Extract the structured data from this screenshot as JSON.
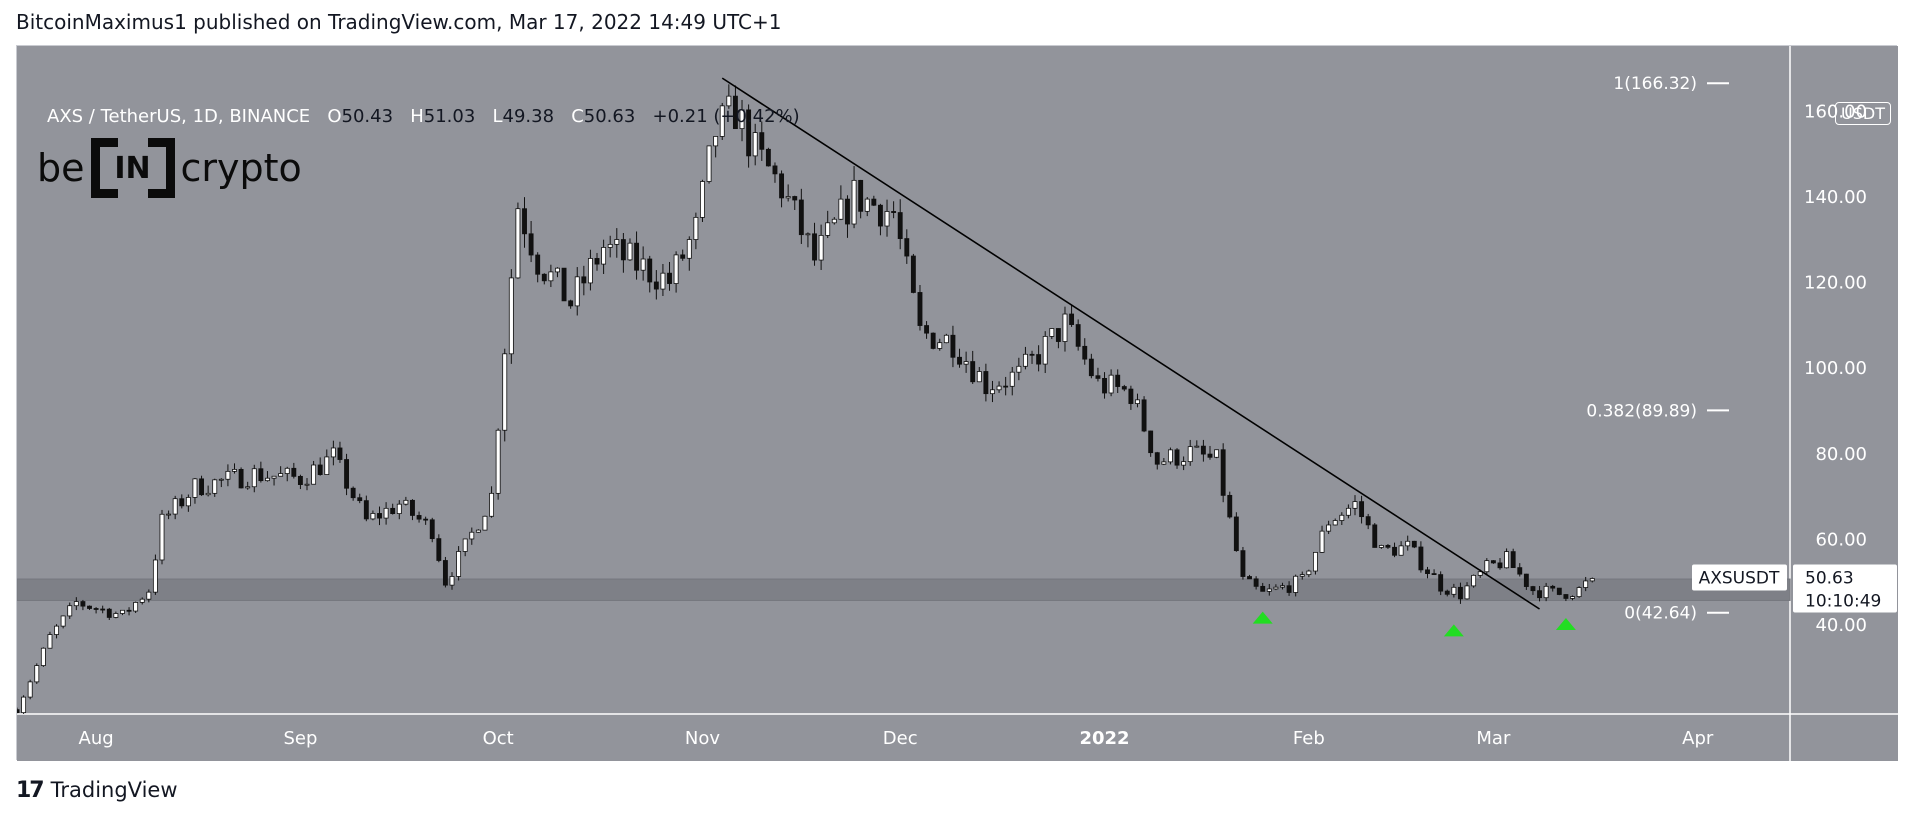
{
  "header": {
    "publisher_text": "BitcoinMaximus1 published on TradingView.com, Mar 17, 2022 14:49 UTC+1"
  },
  "symbol": {
    "title": "AXS / TetherUS, 1D, BINANCE",
    "o_label": "O",
    "o_value": "50.43",
    "h_label": "H",
    "h_value": "51.03",
    "l_label": "L",
    "l_value": "49.38",
    "c_label": "C",
    "c_value": "50.63",
    "change": "+0.21 (+0.42%)"
  },
  "brand": {
    "left": "be",
    "box": "IN",
    "right": "crypto"
  },
  "axis": {
    "currency": "USDT",
    "last_symbol": "AXSUSDT",
    "last_price": "50.63",
    "countdown": "10:10:49"
  },
  "footer": {
    "logo_mark": "17",
    "logo_word": "TradingView"
  },
  "colors": {
    "plot_bg": "#92949b",
    "zone": "#7e8087",
    "candle_up": "#ffffff",
    "candle_down": "#111111",
    "trendline": "#000000",
    "marker": "#22dd22"
  },
  "chart_data": {
    "type": "candlestick",
    "title": "AXS / TetherUS, 1D, BINANCE",
    "ylim": [
      40,
      168
    ],
    "y_ticks": [
      40,
      60,
      80,
      100,
      120,
      140,
      160
    ],
    "y_tick_labels": [
      "40.00",
      "60.00",
      "80.00",
      "100.00",
      "120.00",
      "140.00",
      "160.00"
    ],
    "x_ticks": [
      {
        "label": "Aug",
        "date": "2021-08-01"
      },
      {
        "label": "Sep",
        "date": "2021-09-01"
      },
      {
        "label": "Oct",
        "date": "2021-10-01"
      },
      {
        "label": "Nov",
        "date": "2021-11-01"
      },
      {
        "label": "Dec",
        "date": "2021-12-01"
      },
      {
        "label": "2022",
        "date": "2022-01-01",
        "bold": true
      },
      {
        "label": "Feb",
        "date": "2022-02-01"
      },
      {
        "label": "Mar",
        "date": "2022-03-01"
      },
      {
        "label": "Apr",
        "date": "2022-04-01"
      }
    ],
    "x_range": [
      "2021-07-20",
      "2022-04-15"
    ],
    "support_zone": [
      45.5,
      50.5
    ],
    "trendline": [
      {
        "date": "2021-11-04",
        "price": 167.5
      },
      {
        "date": "2022-03-08",
        "price": 43.5
      }
    ],
    "fib_levels": [
      {
        "label": "1(166.32)",
        "price": 166.32
      },
      {
        "label": "0.382(89.89)",
        "price": 89.89
      },
      {
        "label": "0(42.64)",
        "price": 42.64
      }
    ],
    "markers": [
      {
        "date": "2022-01-25",
        "price": 41.5
      },
      {
        "date": "2022-02-23",
        "price": 38.5
      },
      {
        "date": "2022-03-12",
        "price": 40.0
      }
    ],
    "close_anchors": [
      [
        "2021-07-20",
        20
      ],
      [
        "2021-07-25",
        37
      ],
      [
        "2021-07-29",
        45
      ],
      [
        "2021-08-05",
        42
      ],
      [
        "2021-08-09",
        48
      ],
      [
        "2021-08-11",
        64
      ],
      [
        "2021-08-16",
        72
      ],
      [
        "2021-08-25",
        75
      ],
      [
        "2021-09-01",
        74
      ],
      [
        "2021-09-06",
        79
      ],
      [
        "2021-09-11",
        64
      ],
      [
        "2021-09-16",
        68
      ],
      [
        "2021-09-21",
        62
      ],
      [
        "2021-09-23",
        50
      ],
      [
        "2021-09-26",
        58
      ],
      [
        "2021-09-30",
        70
      ],
      [
        "2021-10-02",
        105
      ],
      [
        "2021-10-04",
        138
      ],
      [
        "2021-10-07",
        125
      ],
      [
        "2021-10-12",
        115
      ],
      [
        "2021-10-17",
        128
      ],
      [
        "2021-10-22",
        124
      ],
      [
        "2021-10-27",
        120
      ],
      [
        "2021-10-31",
        132
      ],
      [
        "2021-11-03",
        155
      ],
      [
        "2021-11-06",
        160
      ],
      [
        "2021-11-09",
        150
      ],
      [
        "2021-11-13",
        142
      ],
      [
        "2021-11-18",
        125
      ],
      [
        "2021-11-24",
        140
      ],
      [
        "2021-11-30",
        136
      ],
      [
        "2021-12-04",
        108
      ],
      [
        "2021-12-09",
        106
      ],
      [
        "2021-12-14",
        96
      ],
      [
        "2021-12-19",
        98
      ],
      [
        "2021-12-26",
        110
      ],
      [
        "2021-12-31",
        96
      ],
      [
        "2022-01-05",
        94
      ],
      [
        "2022-01-09",
        78
      ],
      [
        "2022-01-14",
        80
      ],
      [
        "2022-01-18",
        78
      ],
      [
        "2022-01-22",
        50
      ],
      [
        "2022-01-25",
        47
      ],
      [
        "2022-01-31",
        50
      ],
      [
        "2022-02-04",
        64
      ],
      [
        "2022-02-08",
        68
      ],
      [
        "2022-02-12",
        57
      ],
      [
        "2022-02-16",
        58
      ],
      [
        "2022-02-21",
        49
      ],
      [
        "2022-02-24",
        47
      ],
      [
        "2022-02-28",
        53
      ],
      [
        "2022-03-03",
        55
      ],
      [
        "2022-03-07",
        48
      ],
      [
        "2022-03-11",
        47
      ],
      [
        "2022-03-14",
        48
      ],
      [
        "2022-03-16",
        50.63
      ]
    ]
  }
}
